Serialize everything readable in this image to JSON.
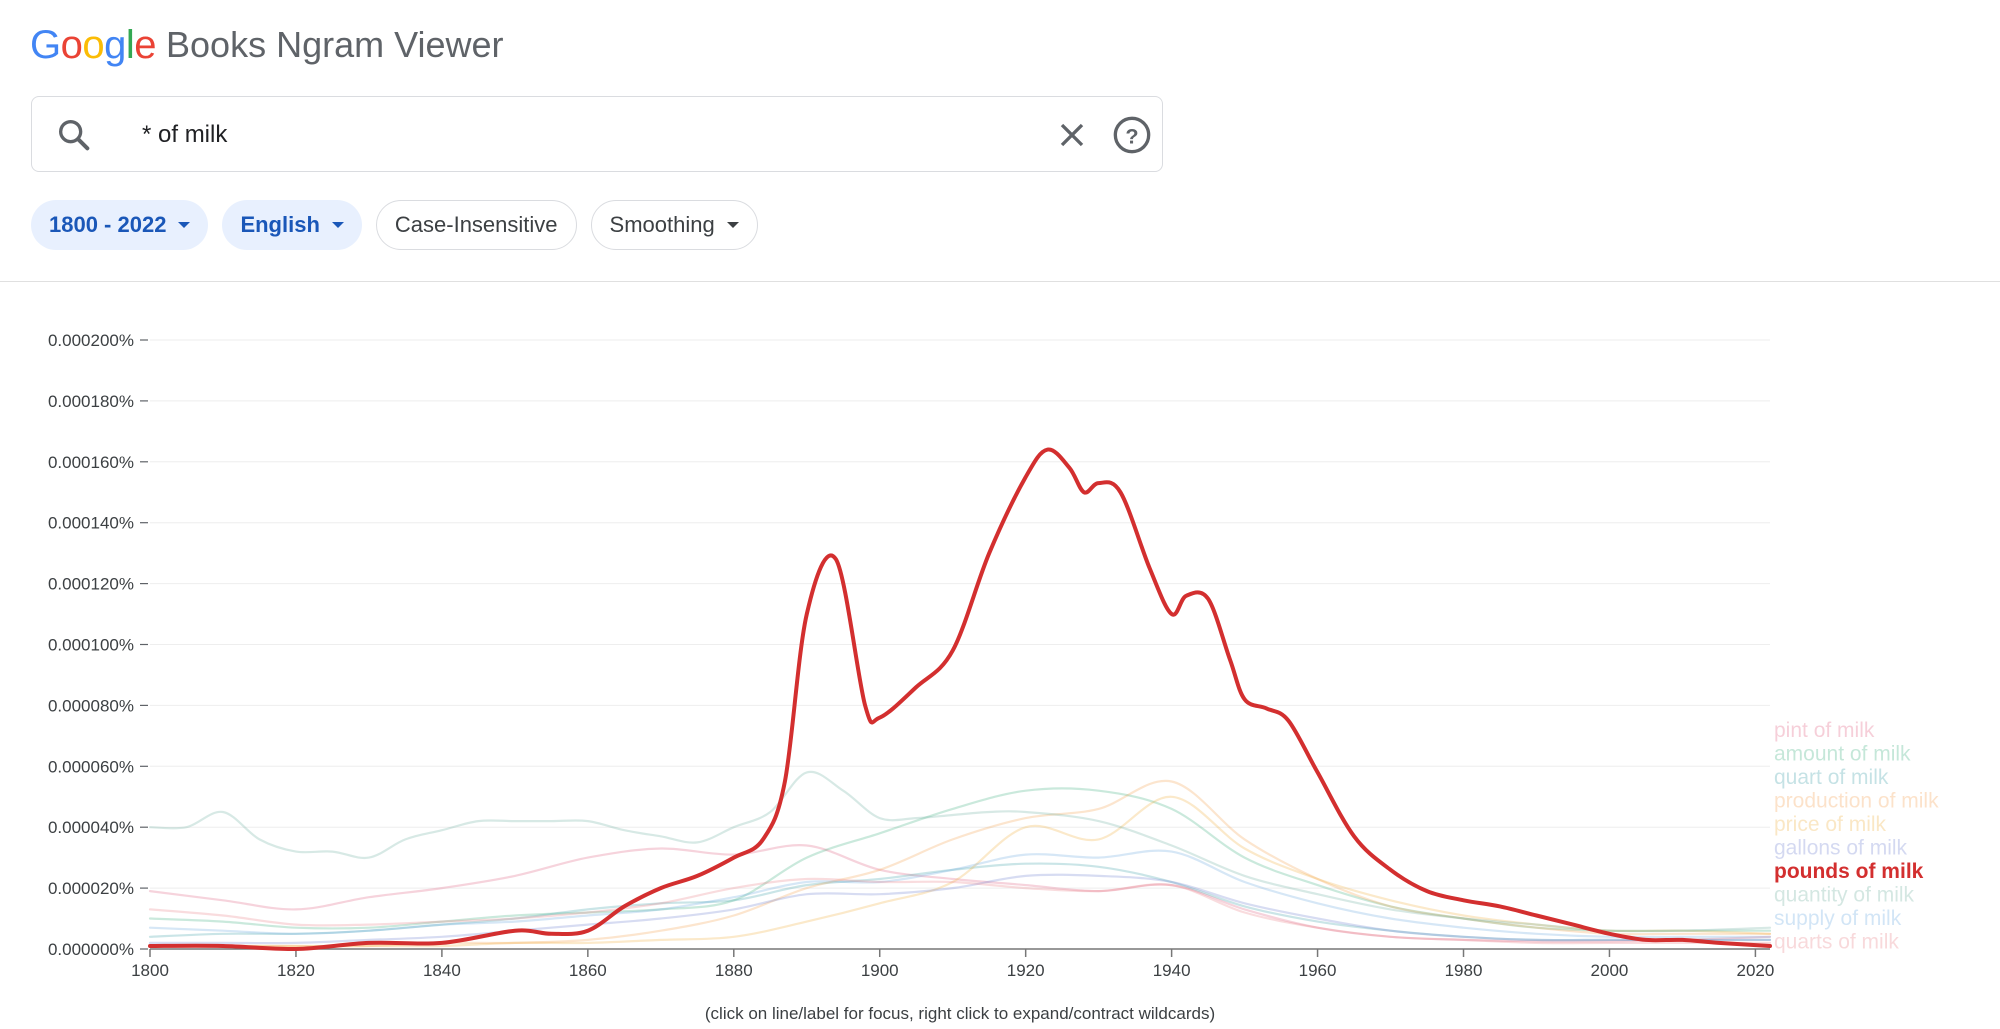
{
  "app": {
    "logo_letters": [
      {
        "char": "G",
        "color": "#4285F4"
      },
      {
        "char": "o",
        "color": "#EA4335"
      },
      {
        "char": "o",
        "color": "#FBBC05"
      },
      {
        "char": "g",
        "color": "#4285F4"
      },
      {
        "char": "l",
        "color": "#34A853"
      },
      {
        "char": "e",
        "color": "#EA4335"
      }
    ],
    "title": "Books Ngram Viewer"
  },
  "search": {
    "query": "* of milk",
    "search_icon": "search-icon",
    "clear_icon": "close-icon",
    "help_icon": "help-circle-icon"
  },
  "filters": {
    "year_range": "1800 - 2022",
    "corpus": "English",
    "case": "Case-Insensitive",
    "smoothing": "Smoothing"
  },
  "footnote": "(click on line/label for focus, right click to expand/contract wildcards)",
  "chart_data": {
    "type": "line",
    "x_range": [
      1800,
      2022
    ],
    "ylim": [
      0,
      0.0002
    ],
    "y_tick_labels": [
      "0.000000%",
      "0.000020%",
      "0.000040%",
      "0.000060%",
      "0.000080%",
      "0.000100%",
      "0.000120%",
      "0.000140%",
      "0.000160%",
      "0.000180%",
      "0.000200%"
    ],
    "x_tick_labels": [
      "1800",
      "1820",
      "1840",
      "1860",
      "1880",
      "1900",
      "1920",
      "1940",
      "1960",
      "1980",
      "2000",
      "2020"
    ],
    "legend_position": "right",
    "focused_series": "pounds of milk",
    "series": [
      {
        "name": "pint of milk",
        "color": "#e06080",
        "x": [
          1800,
          1810,
          1820,
          1830,
          1840,
          1850,
          1860,
          1870,
          1880,
          1890,
          1900,
          1910,
          1920,
          1930,
          1940,
          1950,
          1960,
          1970,
          1980,
          1990,
          2000,
          2010,
          2022
        ],
        "y": [
          1.9e-05,
          1.6e-05,
          1.3e-05,
          1.7e-05,
          2e-05,
          2.4e-05,
          3e-05,
          3.3e-05,
          3.1e-05,
          3.4e-05,
          2.6e-05,
          2.3e-05,
          2.1e-05,
          1.9e-05,
          2.1e-05,
          1.3e-05,
          7e-06,
          4e-06,
          3e-06,
          2.5e-06,
          2.5e-06,
          3e-06,
          4e-06
        ]
      },
      {
        "name": "amount of milk",
        "color": "#40b080",
        "x": [
          1800,
          1810,
          1820,
          1830,
          1840,
          1850,
          1860,
          1870,
          1880,
          1890,
          1900,
          1910,
          1920,
          1930,
          1940,
          1950,
          1960,
          1970,
          1980,
          1990,
          2000,
          2010,
          2022
        ],
        "y": [
          1e-05,
          9e-06,
          7e-06,
          7e-06,
          9e-06,
          1.1e-05,
          1.2e-05,
          1.3e-05,
          1.6e-05,
          3e-05,
          3.8e-05,
          4.6e-05,
          5.2e-05,
          5.2e-05,
          4.6e-05,
          3e-05,
          2.1e-05,
          1.4e-05,
          1e-05,
          7e-06,
          6e-06,
          6e-06,
          6e-06
        ]
      },
      {
        "name": "quart of milk",
        "color": "#40a0a8",
        "x": [
          1800,
          1810,
          1820,
          1830,
          1840,
          1850,
          1860,
          1870,
          1880,
          1890,
          1900,
          1910,
          1920,
          1930,
          1940,
          1950,
          1960,
          1970,
          1980,
          1990,
          2000,
          2010,
          2022
        ],
        "y": [
          4e-06,
          5e-06,
          5e-06,
          6e-06,
          8e-06,
          1e-05,
          1.3e-05,
          1.5e-05,
          1.6e-05,
          2.1e-05,
          2.3e-05,
          2.6e-05,
          2.8e-05,
          2.7e-05,
          2.2e-05,
          1.4e-05,
          9e-06,
          6e-06,
          4e-06,
          3e-06,
          3e-06,
          3e-06,
          3e-06
        ]
      },
      {
        "name": "production of milk",
        "color": "#f5a050",
        "x": [
          1800,
          1810,
          1820,
          1830,
          1840,
          1850,
          1860,
          1870,
          1880,
          1890,
          1900,
          1910,
          1920,
          1930,
          1940,
          1950,
          1960,
          1970,
          1980,
          1990,
          2000,
          2010,
          2022
        ],
        "y": [
          1e-06,
          1e-06,
          1e-06,
          1e-06,
          2e-06,
          2e-06,
          3e-06,
          6e-06,
          1.1e-05,
          2e-05,
          2.6e-05,
          3.6e-05,
          4.3e-05,
          4.6e-05,
          5.5e-05,
          3.6e-05,
          2.3e-05,
          1.4e-05,
          1e-05,
          7e-06,
          5e-06,
          5e-06,
          5e-06
        ]
      },
      {
        "name": "price of milk",
        "color": "#f0b040",
        "x": [
          1800,
          1810,
          1820,
          1830,
          1840,
          1850,
          1860,
          1870,
          1880,
          1890,
          1900,
          1910,
          1920,
          1930,
          1940,
          1950,
          1960,
          1970,
          1980,
          1990,
          2000,
          2010,
          2022
        ],
        "y": [
          1e-06,
          1e-06,
          1e-06,
          1e-06,
          1e-06,
          2e-06,
          2e-06,
          3e-06,
          4e-06,
          9e-06,
          1.5e-05,
          2.2e-05,
          4e-05,
          3.6e-05,
          5e-05,
          3.3e-05,
          2.3e-05,
          1.6e-05,
          1.1e-05,
          8e-06,
          6e-06,
          6e-06,
          5e-06
        ]
      },
      {
        "name": "gallons of milk",
        "color": "#7080d0",
        "x": [
          1800,
          1810,
          1820,
          1830,
          1840,
          1850,
          1860,
          1870,
          1880,
          1890,
          1900,
          1910,
          1920,
          1930,
          1940,
          1950,
          1960,
          1970,
          1980,
          1990,
          2000,
          2010,
          2022
        ],
        "y": [
          2e-06,
          2e-06,
          2e-06,
          3e-06,
          4e-06,
          6e-06,
          8e-06,
          1e-05,
          1.3e-05,
          1.8e-05,
          1.8e-05,
          2e-05,
          2.4e-05,
          2.4e-05,
          2.2e-05,
          1.5e-05,
          1e-05,
          6e-06,
          4e-06,
          3e-06,
          3e-06,
          3e-06,
          3e-06
        ]
      },
      {
        "name": "pounds of milk",
        "color": "#d32f2f",
        "x": [
          1800,
          1810,
          1820,
          1830,
          1840,
          1850,
          1855,
          1860,
          1865,
          1870,
          1875,
          1880,
          1884,
          1887,
          1890,
          1894,
          1898,
          1900,
          1905,
          1910,
          1915,
          1920,
          1923,
          1926,
          1928,
          1930,
          1933,
          1937,
          1940,
          1942,
          1945,
          1948,
          1950,
          1953,
          1956,
          1960,
          1965,
          1970,
          1975,
          1980,
          1985,
          1990,
          1995,
          2000,
          2005,
          2010,
          2015,
          2022
        ],
        "y": [
          1e-06,
          1e-06,
          0,
          2e-06,
          2e-06,
          6e-06,
          5e-06,
          6e-06,
          1.4e-05,
          2e-05,
          2.4e-05,
          3e-05,
          3.6e-05,
          5.5e-05,
          0.00011,
          0.000128,
          8e-05,
          7.6e-05,
          8.6e-05,
          9.8e-05,
          0.00013,
          0.000155,
          0.000164,
          0.000158,
          0.00015,
          0.000153,
          0.00015,
          0.000125,
          0.00011,
          0.000116,
          0.000115,
          9.5e-05,
          8.2e-05,
          7.9e-05,
          7.5e-05,
          5.8e-05,
          3.7e-05,
          2.6e-05,
          1.9e-05,
          1.6e-05,
          1.4e-05,
          1.1e-05,
          8e-06,
          5e-06,
          3e-06,
          3e-06,
          2e-06,
          1e-06
        ]
      },
      {
        "name": "quantity of milk",
        "color": "#70b0a0",
        "x": [
          1800,
          1805,
          1810,
          1815,
          1820,
          1825,
          1830,
          1835,
          1840,
          1845,
          1850,
          1855,
          1860,
          1865,
          1870,
          1875,
          1880,
          1885,
          1890,
          1895,
          1900,
          1905,
          1910,
          1915,
          1920,
          1930,
          1940,
          1950,
          1960,
          1970,
          1980,
          1990,
          2000,
          2010,
          2022
        ],
        "y": [
          4e-05,
          4e-05,
          4.5e-05,
          3.6e-05,
          3.2e-05,
          3.2e-05,
          3e-05,
          3.6e-05,
          3.9e-05,
          4.2e-05,
          4.2e-05,
          4.2e-05,
          4.2e-05,
          3.9e-05,
          3.7e-05,
          3.5e-05,
          4e-05,
          4.5e-05,
          5.8e-05,
          5.2e-05,
          4.3e-05,
          4.3e-05,
          4.4e-05,
          4.5e-05,
          4.5e-05,
          4.2e-05,
          3.4e-05,
          2.4e-05,
          1.8e-05,
          1.3e-05,
          1e-05,
          8e-06,
          6e-06,
          6e-06,
          7e-06
        ]
      },
      {
        "name": "supply of milk",
        "color": "#6aa8e0",
        "x": [
          1800,
          1810,
          1820,
          1830,
          1840,
          1850,
          1860,
          1870,
          1880,
          1890,
          1900,
          1910,
          1920,
          1930,
          1940,
          1950,
          1960,
          1970,
          1980,
          1990,
          2000,
          2010,
          2022
        ],
        "y": [
          7e-06,
          6e-06,
          5e-06,
          6e-06,
          8e-06,
          9e-06,
          1.1e-05,
          1.3e-05,
          1.7e-05,
          2.2e-05,
          2.2e-05,
          2.6e-05,
          3.1e-05,
          3e-05,
          3.2e-05,
          2.2e-05,
          1.5e-05,
          1e-05,
          7e-06,
          5e-06,
          4e-06,
          4e-06,
          4e-06
        ]
      },
      {
        "name": "quarts of milk",
        "color": "#e88088",
        "x": [
          1800,
          1810,
          1820,
          1830,
          1840,
          1850,
          1860,
          1870,
          1880,
          1890,
          1900,
          1910,
          1920,
          1930,
          1940,
          1950,
          1960,
          1970,
          1980,
          1990,
          2000,
          2010,
          2022
        ],
        "y": [
          1.3e-05,
          1.1e-05,
          8e-06,
          8e-06,
          9e-06,
          1e-05,
          1.2e-05,
          1.5e-05,
          2e-05,
          2.3e-05,
          2.2e-05,
          2.2e-05,
          2e-05,
          1.9e-05,
          2.1e-05,
          1.2e-05,
          7e-06,
          4e-06,
          3e-06,
          2e-06,
          2e-06,
          2e-06,
          2e-06
        ]
      }
    ],
    "legend_order": [
      "pint of milk",
      "amount of milk",
      "quart of milk",
      "production of milk",
      "price of milk",
      "gallons of milk",
      "pounds of milk",
      "quantity of milk",
      "supply of milk",
      "quarts of milk"
    ]
  }
}
